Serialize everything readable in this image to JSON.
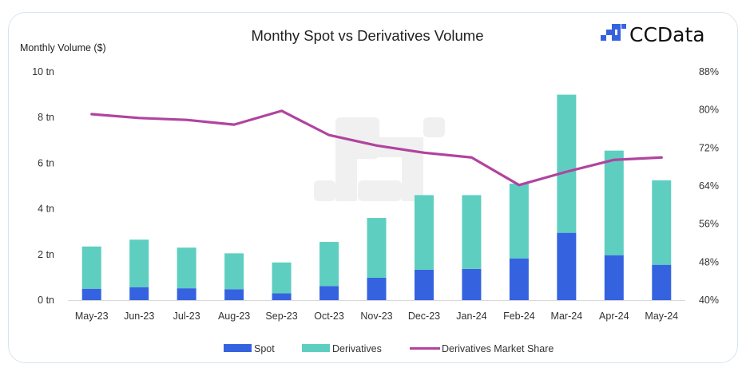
{
  "chart_data": {
    "type": "bar",
    "stacked": true,
    "title": "Monthy Spot vs Derivatives Volume",
    "ylabel": "Monthly Volume ($)",
    "y2label": "",
    "xlabel": "",
    "ylim": [
      0,
      10
    ],
    "y2lim": [
      40,
      88
    ],
    "y_ticks": [
      "0 tn",
      "2 tn",
      "4 tn",
      "6 tn",
      "8 tn",
      "10 tn"
    ],
    "y_tick_values": [
      0,
      2,
      4,
      6,
      8,
      10
    ],
    "y2_ticks": [
      "40%",
      "48%",
      "56%",
      "64%",
      "72%",
      "80%",
      "88%"
    ],
    "y2_tick_values": [
      40,
      48,
      56,
      64,
      72,
      80,
      88
    ],
    "grid": false,
    "legend_position": "bottom",
    "categories": [
      "May-23",
      "Jun-23",
      "Jul-23",
      "Aug-23",
      "Sep-23",
      "Oct-23",
      "Nov-23",
      "Dec-23",
      "Jan-24",
      "Feb-24",
      "Mar-24",
      "Apr-24",
      "May-24"
    ],
    "series": [
      {
        "name": "Spot",
        "type": "bar",
        "axis": "left",
        "color": "#3563e0",
        "values": [
          0.5,
          0.57,
          0.52,
          0.48,
          0.3,
          0.62,
          0.98,
          1.33,
          1.37,
          1.83,
          2.95,
          1.97,
          1.55
        ]
      },
      {
        "name": "Derivatives",
        "type": "bar",
        "axis": "left",
        "color": "#5ecec0",
        "values": [
          1.85,
          2.08,
          1.78,
          1.57,
          1.35,
          1.93,
          2.62,
          3.27,
          3.23,
          3.27,
          6.05,
          4.58,
          3.7
        ]
      },
      {
        "name": "Derivatives Market Share",
        "type": "line",
        "axis": "right",
        "color": "#b0449f",
        "values": [
          79.1,
          78.3,
          77.9,
          76.9,
          79.8,
          74.7,
          72.5,
          71.0,
          70.0,
          64.2,
          67.0,
          69.5,
          70.0
        ]
      }
    ]
  },
  "brand": {
    "logo_text": "CCData",
    "logo_color": "#3563e0"
  }
}
